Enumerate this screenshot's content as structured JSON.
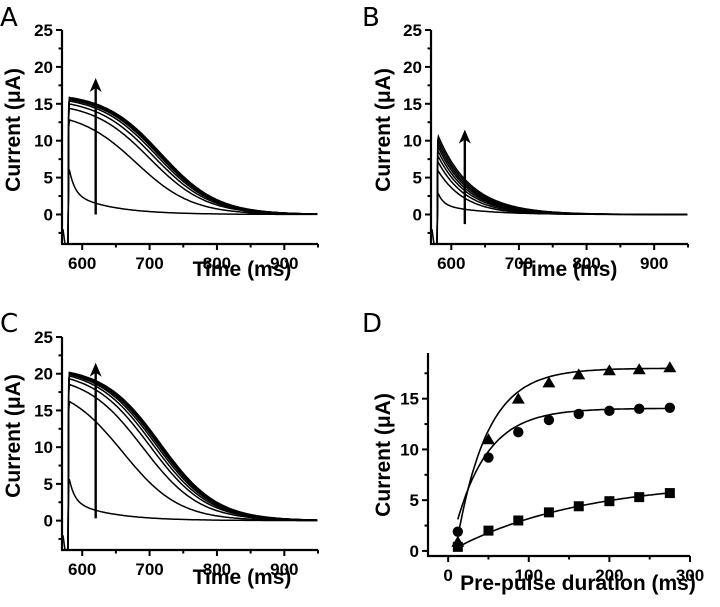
{
  "chart_data": [
    {
      "panel": "A",
      "type": "line",
      "title": "",
      "xlabel": "Time (ms)",
      "ylabel": "Current (μA)",
      "xlim": [
        570,
        950
      ],
      "ylim": [
        -4,
        25
      ],
      "xticks": [
        600,
        700,
        800,
        900
      ],
      "yticks": [
        0,
        5,
        10,
        15,
        20,
        25
      ],
      "grid": false,
      "annotation": "upward arrow at t=620 ms indicating increasing pre-pulse duration",
      "arrow": {
        "x": 620,
        "y_from": 0,
        "y_to": 18.5
      },
      "pulse_start": 580,
      "series": [
        {
          "name": "trace 1",
          "peak": 6.5,
          "kind": "fast"
        },
        {
          "name": "trace 2",
          "peak": 12.7,
          "half_time": 680
        },
        {
          "name": "trace 3",
          "peak": 14.3,
          "half_time": 700
        },
        {
          "name": "trace 4",
          "peak": 14.9,
          "half_time": 706
        },
        {
          "name": "trace 5",
          "peak": 15.3,
          "half_time": 710
        },
        {
          "name": "trace 6",
          "peak": 15.5,
          "half_time": 713
        },
        {
          "name": "trace 7",
          "peak": 15.6,
          "half_time": 715
        },
        {
          "name": "trace 8",
          "peak": 15.7,
          "half_time": 716
        },
        {
          "name": "trace 9",
          "peak": 15.8,
          "half_time": 717
        }
      ]
    },
    {
      "panel": "B",
      "type": "line",
      "title": "",
      "xlabel": "Time (ms)",
      "ylabel": "Current (μA)",
      "xlim": [
        570,
        950
      ],
      "ylim": [
        -4,
        25
      ],
      "xticks": [
        600,
        700,
        800,
        900
      ],
      "yticks": [
        0,
        5,
        10,
        15,
        20,
        25
      ],
      "grid": false,
      "annotation": "upward arrow at t=620 ms indicating increasing pre-pulse duration",
      "arrow": {
        "x": 620,
        "y_from": -1.3,
        "y_to": 11.5
      },
      "pulse_start": 580,
      "series": [
        {
          "name": "trace 1",
          "peak": 3.0,
          "kind": "fast"
        },
        {
          "name": "trace 2",
          "peak": 6.0,
          "tau": 40
        },
        {
          "name": "trace 3",
          "peak": 7.2,
          "tau": 42
        },
        {
          "name": "trace 4",
          "peak": 8.0,
          "tau": 44
        },
        {
          "name": "trace 5",
          "peak": 8.7,
          "tau": 45
        },
        {
          "name": "trace 6",
          "peak": 9.3,
          "tau": 46
        },
        {
          "name": "trace 7",
          "peak": 9.8,
          "tau": 47
        },
        {
          "name": "trace 8",
          "peak": 10.3,
          "tau": 48
        },
        {
          "name": "trace 9",
          "peak": 10.8,
          "tau": 49
        }
      ]
    },
    {
      "panel": "C",
      "type": "line",
      "title": "",
      "xlabel": "Time (ms)",
      "ylabel": "Current (μA)",
      "xlim": [
        570,
        950
      ],
      "ylim": [
        -4,
        25
      ],
      "xticks": [
        600,
        700,
        800,
        900
      ],
      "yticks": [
        0,
        5,
        10,
        15,
        20,
        25
      ],
      "grid": false,
      "annotation": "upward arrow at t=620 ms indicating increasing pre-pulse duration",
      "arrow": {
        "x": 620,
        "y_from": 0.3,
        "y_to": 21.5
      },
      "pulse_start": 580,
      "series": [
        {
          "name": "trace 1",
          "peak": 6.0,
          "kind": "fast"
        },
        {
          "name": "trace 2",
          "peak": 16.0,
          "half_time": 660
        },
        {
          "name": "trace 3",
          "peak": 18.4,
          "half_time": 690
        },
        {
          "name": "trace 4",
          "peak": 19.2,
          "half_time": 700
        },
        {
          "name": "trace 5",
          "peak": 19.6,
          "half_time": 705
        },
        {
          "name": "trace 6",
          "peak": 19.8,
          "half_time": 709
        },
        {
          "name": "trace 7",
          "peak": 19.9,
          "half_time": 712
        },
        {
          "name": "trace 8",
          "peak": 20.0,
          "half_time": 714
        },
        {
          "name": "trace 9",
          "peak": 20.1,
          "half_time": 716
        }
      ]
    },
    {
      "panel": "D",
      "type": "scatter",
      "title": "",
      "xlabel": "Pre-pulse duration (ms)",
      "ylabel": "Current (μA)",
      "xlim": [
        -25,
        300
      ],
      "ylim": [
        -0.5,
        19.5
      ],
      "xticks": [
        0,
        100,
        200,
        300
      ],
      "yticks": [
        0,
        5,
        10,
        15
      ],
      "grid": false,
      "legend": "none",
      "x": [
        12,
        50,
        87,
        125,
        162,
        200,
        237,
        275
      ],
      "series": [
        {
          "name": "triangles",
          "marker": "triangle",
          "values": [
            0.9,
            11.0,
            15.0,
            16.6,
            17.4,
            17.8,
            17.9,
            18.1
          ],
          "fit": {
            "amp": 18.0,
            "tau": 38,
            "x0": 9
          }
        },
        {
          "name": "circles",
          "marker": "circle",
          "values": [
            1.9,
            9.2,
            11.7,
            12.9,
            13.5,
            13.8,
            14.0,
            14.1
          ],
          "fit": {
            "amp": 14.05,
            "tau": 40,
            "x0": 2
          }
        },
        {
          "name": "squares",
          "marker": "square",
          "values": [
            0.4,
            2.0,
            3.0,
            3.8,
            4.4,
            4.9,
            5.3,
            5.7
          ],
          "fit": {
            "amp": 7.0,
            "tau": 160,
            "x0": 3
          }
        }
      ]
    }
  ]
}
